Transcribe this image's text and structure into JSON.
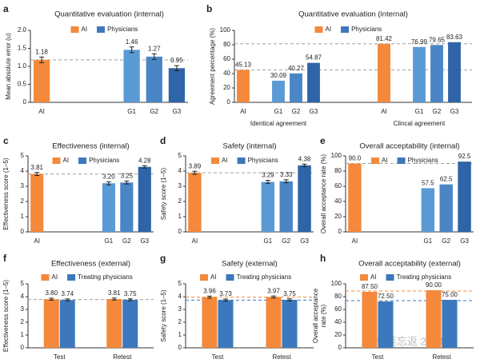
{
  "chart_data": [
    {
      "type": "bar",
      "panel": "a",
      "title": "Quantitative evaluation (internal)",
      "ylabel": [
        "Mean absolute error (u)"
      ],
      "legend": [
        {
          "name": "AI",
          "color": "#f4893b"
        },
        {
          "name": "Physicians",
          "color": "#3c78bb"
        }
      ],
      "categories": [
        "AI",
        "G1",
        "G2",
        "G3"
      ],
      "values": [
        1.18,
        1.46,
        1.27,
        0.95
      ],
      "errors": [
        0.08,
        0.08,
        0.08,
        0.07
      ],
      "colors": [
        "#f4893b",
        "#5b9bd5",
        "#4a86c5",
        "#2f64a8"
      ],
      "ylim": [
        0,
        2
      ],
      "yticks": [
        0,
        0.5,
        {
          "value": 1,
          "label": "1.0"
        },
        1.5,
        {
          "value": 2,
          "label": "2.0"
        }
      ],
      "ref_lines": [
        {
          "value": 1.18,
          "color": "#a0a0a0"
        }
      ]
    },
    {
      "type": "bar",
      "panel": "b",
      "title": "Quantitative evaluation (internal)",
      "ylabel": [
        "Agreement percentage (%)"
      ],
      "legend": [
        {
          "name": "AI",
          "color": "#f4893b"
        },
        {
          "name": "Physicians",
          "color": "#3c78bb"
        }
      ],
      "categories": [
        "AI",
        "G1",
        "G2",
        "G3",
        "AI",
        "G1",
        "G2",
        "G3"
      ],
      "values": [
        45.13,
        30.09,
        40.27,
        54.87,
        81.42,
        76.99,
        79.65,
        83.63
      ],
      "colors": [
        "#f4893b",
        "#5b9bd5",
        "#4a86c5",
        "#2f64a8",
        "#f4893b",
        "#5b9bd5",
        "#4a86c5",
        "#2f64a8"
      ],
      "group_labels": [
        "Identical agreement",
        "Clincal agreement"
      ],
      "ylim": [
        0,
        100
      ],
      "yticks": [
        0,
        20,
        40,
        60,
        80,
        100
      ],
      "ref_lines": [
        {
          "value": 45.13,
          "color": "#a0a0a0"
        },
        {
          "value": 81.42,
          "color": "#a0a0a0"
        }
      ]
    },
    {
      "type": "bar",
      "panel": "c",
      "title": "Effectiveness (internal)",
      "ylabel": [
        "Effectiveness score (1–5)"
      ],
      "legend": [
        {
          "name": "AI",
          "color": "#f4893b"
        },
        {
          "name": "Physicians",
          "color": "#3c78bb"
        }
      ],
      "categories": [
        "AI",
        "G1",
        "G2",
        "G3"
      ],
      "values": [
        3.81,
        3.2,
        3.25,
        4.28
      ],
      "value_labels": [
        "3.81",
        "3.20",
        "3.25",
        "4.28"
      ],
      "errors": [
        0.1,
        0.1,
        0.1,
        0.08
      ],
      "colors": [
        "#f4893b",
        "#5b9bd5",
        "#4a86c5",
        "#2f64a8"
      ],
      "ylim": [
        0,
        5
      ],
      "yticks": [
        0,
        1,
        2,
        3,
        4,
        5
      ],
      "ref_lines": [
        {
          "value": 3.81,
          "color": "#a0a0a0"
        }
      ]
    },
    {
      "type": "bar",
      "panel": "d",
      "title": "Safety (internal)",
      "ylabel": [
        "Safety score (1–5)"
      ],
      "legend": [
        {
          "name": "AI",
          "color": "#f4893b"
        },
        {
          "name": "Physicians",
          "color": "#3c78bb"
        }
      ],
      "categories": [
        "AI",
        "G1",
        "G2",
        "G3"
      ],
      "values": [
        3.89,
        3.29,
        3.33,
        4.38
      ],
      "errors": [
        0.1,
        0.1,
        0.1,
        0.08
      ],
      "colors": [
        "#f4893b",
        "#5b9bd5",
        "#4a86c5",
        "#2f64a8"
      ],
      "ylim": [
        0,
        5
      ],
      "yticks": [
        0,
        1,
        2,
        3,
        4,
        5
      ],
      "ref_lines": [
        {
          "value": 3.89,
          "color": "#a0a0a0"
        }
      ]
    },
    {
      "type": "bar",
      "panel": "e",
      "title": "Overall acceptability (internal)",
      "ylabel": [
        "Overall acceptance rate (%)"
      ],
      "legend": [
        {
          "name": "AI",
          "color": "#f4893b"
        },
        {
          "name": "Physicians",
          "color": "#3c78bb"
        }
      ],
      "categories": [
        "AI",
        "G1",
        "G2",
        "G3"
      ],
      "values": [
        90,
        57.5,
        62.5,
        92.5
      ],
      "value_labels": [
        "90.0",
        "57.5",
        "62.5",
        "92.5"
      ],
      "colors": [
        "#f4893b",
        "#5b9bd5",
        "#4a86c5",
        "#2f64a8"
      ],
      "ylim": [
        0,
        100
      ],
      "yticks": [
        0,
        20,
        40,
        60,
        80,
        100
      ],
      "ref_lines": [
        {
          "value": 90,
          "color": "#a0a0a0"
        }
      ]
    },
    {
      "type": "grouped_bar",
      "panel": "f",
      "title": "Effectiveness (external)",
      "ylabel": [
        "Effectiveness score (1–5)"
      ],
      "categories": [
        "Test",
        "Retest"
      ],
      "series": [
        {
          "name": "AI",
          "color": "#f4893b",
          "values": [
            3.8,
            3.81
          ],
          "value_labels": [
            "3.80",
            "3.81"
          ],
          "errors": [
            0.08,
            0.08
          ]
        },
        {
          "name": "Treating physicians",
          "color": "#3c78bb",
          "values": [
            3.74,
            3.75
          ],
          "errors": [
            0.08,
            0.08
          ]
        }
      ],
      "ylim": [
        0,
        5
      ],
      "yticks": [
        0,
        1,
        2,
        3,
        4,
        5
      ],
      "ref_lines": [
        {
          "value": 3.77,
          "color": "#a0a0a0"
        }
      ]
    },
    {
      "type": "grouped_bar",
      "panel": "g",
      "title": "Safety (external)",
      "ylabel": [
        "Safety score (1–5)"
      ],
      "categories": [
        "Test",
        "Retest"
      ],
      "series": [
        {
          "name": "AI",
          "color": "#f4893b",
          "values": [
            3.96,
            3.97
          ],
          "errors": [
            0.08,
            0.08
          ]
        },
        {
          "name": "Treating physicians",
          "color": "#3c78bb",
          "values": [
            3.73,
            3.75
          ],
          "errors": [
            0.08,
            0.08
          ]
        }
      ],
      "ylim": [
        0,
        5
      ],
      "yticks": [
        0,
        1,
        2,
        3,
        4,
        5
      ],
      "ref_lines": [
        {
          "value": 3.96,
          "color": "#f4893b"
        },
        {
          "value": 3.73,
          "color": "#3c78bb"
        }
      ]
    },
    {
      "type": "grouped_bar",
      "panel": "h",
      "title": "Overall acceptability (external)",
      "ylabel": [
        "Overall acceptance",
        "rate (%)"
      ],
      "categories": [
        "Test",
        "Retest"
      ],
      "series": [
        {
          "name": "AI",
          "color": "#f4893b",
          "values": [
            87.5,
            90
          ],
          "value_labels": [
            "87.50",
            "90.00"
          ]
        },
        {
          "name": "Treating physicians",
          "color": "#3c78bb",
          "values": [
            72.5,
            75
          ],
          "value_labels": [
            "72.50",
            "75.00"
          ]
        }
      ],
      "ylim": [
        0,
        100
      ],
      "yticks": [
        0,
        20,
        40,
        60,
        80,
        100
      ],
      "ref_lines": [
        {
          "value": 88.75,
          "color": "#f4893b"
        },
        {
          "value": 73.75,
          "color": "#3c78bb"
        }
      ]
    }
  ],
  "watermark": "榴莲忘返 2014"
}
